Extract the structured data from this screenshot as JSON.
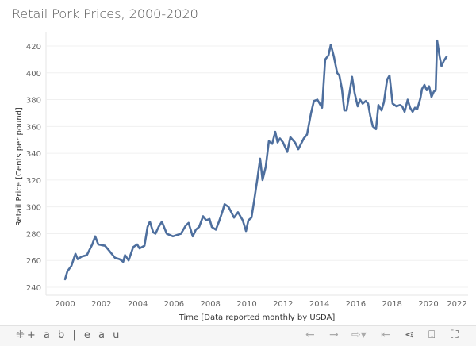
{
  "title": "Retail Pork Prices, 2000-2020",
  "toolbar": {
    "logo_text": "+ a b | e a u",
    "buttons": [
      "undo-icon",
      "redo-icon",
      "revert-icon",
      "reset-icon",
      "share-icon",
      "download-icon",
      "fullscreen-icon"
    ]
  },
  "chart_data": {
    "type": "line",
    "title": "Retail Pork Prices, 2000-2020",
    "xlabel": "Time [Data reported monthly by USDA]",
    "ylabel": "Retail Price [Cents per pound]",
    "xlim": [
      1999.5,
      2021.6
    ],
    "ylim": [
      236,
      428
    ],
    "x_ticks": [
      "2000",
      "2002",
      "2004",
      "2006",
      "2008",
      "2010",
      "2012",
      "2014",
      "2016",
      "2018",
      "2020",
      "2022"
    ],
    "y_ticks": [
      "240",
      "260",
      "280",
      "300",
      "320",
      "340",
      "360",
      "380",
      "400",
      "420"
    ],
    "grid": "horizontal",
    "line_color": "#4e6f9e",
    "x": [
      2000.0,
      2000.13,
      2000.35,
      2000.57,
      2000.7,
      2000.92,
      2001.2,
      2001.5,
      2001.66,
      2001.83,
      2002.2,
      2002.45,
      2002.75,
      2003.0,
      2003.2,
      2003.3,
      2003.5,
      2003.75,
      2003.97,
      2004.1,
      2004.37,
      2004.54,
      2004.67,
      2004.85,
      2004.98,
      2005.15,
      2005.33,
      2005.6,
      2005.94,
      2006.16,
      2006.38,
      2006.64,
      2006.8,
      2007.03,
      2007.2,
      2007.38,
      2007.6,
      2007.77,
      2007.95,
      2008.08,
      2008.3,
      2008.47,
      2008.65,
      2008.78,
      2009.0,
      2009.3,
      2009.52,
      2009.78,
      2009.96,
      2010.09,
      2010.26,
      2010.4,
      2010.6,
      2010.74,
      2010.87,
      2011.05,
      2011.22,
      2011.4,
      2011.57,
      2011.7,
      2011.83,
      2012.0,
      2012.23,
      2012.4,
      2012.66,
      2012.84,
      2013.14,
      2013.32,
      2013.54,
      2013.7,
      2013.89,
      2014.06,
      2014.15,
      2014.32,
      2014.5,
      2014.63,
      2014.8,
      2014.98,
      2015.1,
      2015.24,
      2015.37,
      2015.5,
      2015.68,
      2015.8,
      2015.94,
      2016.11,
      2016.24,
      2016.38,
      2016.55,
      2016.68,
      2016.8,
      2016.94,
      2017.12,
      2017.25,
      2017.42,
      2017.55,
      2017.73,
      2017.86,
      2018.03,
      2018.25,
      2018.43,
      2018.56,
      2018.69,
      2018.86,
      2018.99,
      2019.13,
      2019.26,
      2019.39,
      2019.56,
      2019.65,
      2019.78,
      2019.91,
      2020.04,
      2020.17,
      2020.3,
      2020.4,
      2020.48,
      2020.62,
      2020.72,
      2020.85,
      2021.0
    ],
    "y": [
      246,
      252,
      256,
      265,
      261,
      263,
      264,
      272,
      278,
      272,
      271,
      267,
      262,
      261,
      259,
      264,
      260,
      270,
      272,
      269,
      271,
      285,
      289,
      281,
      280,
      285,
      289,
      280,
      278,
      279,
      280,
      286,
      288,
      278,
      283,
      285,
      293,
      290,
      291,
      285,
      283,
      289,
      296,
      302,
      300,
      292,
      296,
      290,
      282,
      290,
      292,
      304,
      322,
      336,
      320,
      330,
      349,
      347,
      356,
      348,
      351,
      348,
      341,
      352,
      348,
      343,
      351,
      354,
      370,
      379,
      380,
      376,
      374,
      410,
      413,
      421,
      412,
      400,
      398,
      388,
      372,
      372,
      387,
      397,
      385,
      375,
      380,
      377,
      379,
      377,
      368,
      360,
      358,
      376,
      372,
      378,
      395,
      398,
      377,
      375,
      376,
      375,
      371,
      380,
      374,
      371,
      374,
      373,
      381,
      388,
      391,
      387,
      390,
      382,
      386,
      387,
      424,
      412,
      405,
      409,
      412
    ]
  }
}
